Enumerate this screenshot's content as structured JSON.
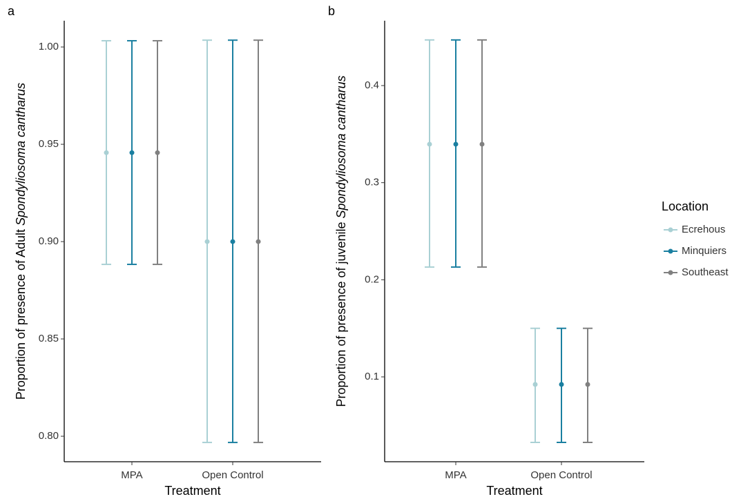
{
  "chart_data": [
    {
      "type": "errorbar",
      "panel_label": "a",
      "y_label": "Proportion of presence of Adult",
      "y_label_species": "Spondyliosoma cantharus",
      "x_label": "Treatment",
      "categories": [
        "MPA",
        "Open Control"
      ],
      "series": [
        {
          "name": "Ecrehous",
          "color": "#a9d0d4",
          "values": [
            0.9457,
            0.9
          ],
          "lower": [
            0.8883,
            0.7968
          ],
          "upper": [
            1.0032,
            1.0035
          ]
        },
        {
          "name": "Minquiers",
          "color": "#1a7fa0",
          "values": [
            0.9457,
            0.9
          ],
          "lower": [
            0.8883,
            0.7968
          ],
          "upper": [
            1.0032,
            1.0035
          ]
        },
        {
          "name": "Southeast",
          "color": "#808080",
          "values": [
            0.9457,
            0.9
          ],
          "lower": [
            0.8883,
            0.7968
          ],
          "upper": [
            1.0032,
            1.0035
          ]
        }
      ],
      "ylim": [
        0.7869,
        1.0135
      ],
      "yticks": [
        {
          "value": 0.8,
          "label": "0.80"
        },
        {
          "value": 0.85,
          "label": "0.85"
        },
        {
          "value": 0.9,
          "label": "0.90"
        },
        {
          "value": 0.95,
          "label": "0.95"
        },
        {
          "value": 1.0,
          "label": "1.00"
        }
      ]
    },
    {
      "type": "errorbar",
      "panel_label": "b",
      "y_label": "Proportion of presence of juvenile",
      "y_label_species": "Spondyliosoma cantharus",
      "x_label": "Treatment",
      "legend_title": "Location",
      "categories": [
        "MPA",
        "Open Control"
      ],
      "series": [
        {
          "name": "Ecrehous",
          "color": "#a9d0d4",
          "values": [
            0.3396,
            0.0922
          ],
          "lower": [
            0.2131,
            0.0325
          ],
          "upper": [
            0.447,
            0.15
          ]
        },
        {
          "name": "Minquiers",
          "color": "#1a7fa0",
          "values": [
            0.3396,
            0.0922
          ],
          "lower": [
            0.2131,
            0.0325
          ],
          "upper": [
            0.447,
            0.15
          ]
        },
        {
          "name": "Southeast",
          "color": "#808080",
          "values": [
            0.3396,
            0.0922
          ],
          "lower": [
            0.2131,
            0.0325
          ],
          "upper": [
            0.447,
            0.15
          ]
        }
      ],
      "ylim": [
        0.0126,
        0.4668
      ],
      "yticks": [
        0.1,
        0.2,
        0.3,
        0.4
      ]
    }
  ]
}
